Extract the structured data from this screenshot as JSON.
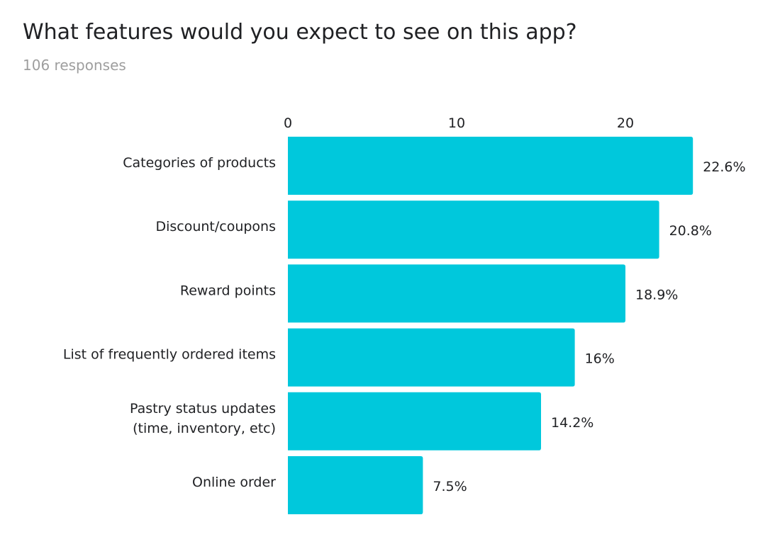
{
  "header": {
    "title": "What features would you expect to see on this app?",
    "subtitle": "106 responses"
  },
  "chart_data": {
    "type": "bar",
    "orientation": "horizontal",
    "categories": [
      [
        "Categories of products"
      ],
      [
        "Discount/coupons"
      ],
      [
        "Reward points"
      ],
      [
        "List of frequently ordered items"
      ],
      [
        "Pastry status updates",
        "(time, inventory, etc)"
      ],
      [
        "Online order"
      ]
    ],
    "values": [
      24,
      22,
      20,
      17,
      15,
      8
    ],
    "data_labels": [
      "22.6%",
      "20.8%",
      "18.9%",
      "16%",
      "14.2%",
      "7.5%"
    ],
    "xlim": [
      0,
      24
    ],
    "xticks": [
      0,
      10,
      20
    ],
    "xtick_labels": [
      "0",
      "10",
      "20"
    ],
    "axis_position": "top",
    "grid": false,
    "colors": {
      "bar": "#00c8dc",
      "text": "#202124",
      "subtitle": "#9e9e9e"
    }
  }
}
